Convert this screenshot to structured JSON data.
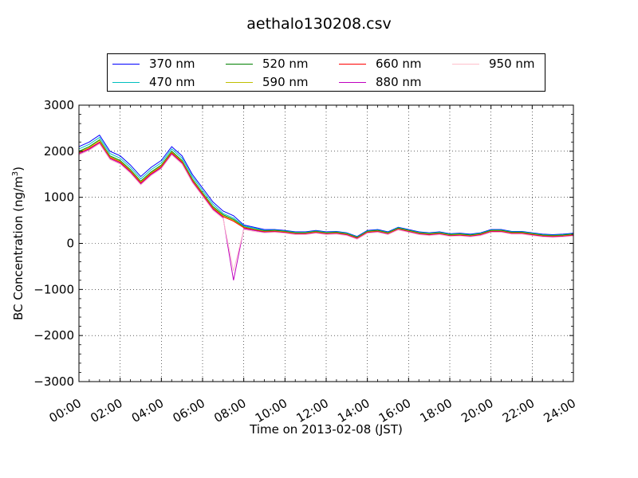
{
  "chart_data": {
    "type": "line",
    "title": "aethalo130208.csv",
    "xlabel": "Time on 2013-02-08 (JST)",
    "ylabel_main": "BC Concentration (ng/m",
    "ylabel_sup": "3",
    "ylabel_end": ")",
    "xlim_hours": [
      0,
      24
    ],
    "ylim": [
      -3000,
      3000
    ],
    "x_ticks": [
      {
        "hour": 0,
        "label": "00:00"
      },
      {
        "hour": 2,
        "label": "02:00"
      },
      {
        "hour": 4,
        "label": "04:00"
      },
      {
        "hour": 6,
        "label": "06:00"
      },
      {
        "hour": 8,
        "label": "08:00"
      },
      {
        "hour": 10,
        "label": "10:00"
      },
      {
        "hour": 12,
        "label": "12:00"
      },
      {
        "hour": 14,
        "label": "14:00"
      },
      {
        "hour": 16,
        "label": "16:00"
      },
      {
        "hour": 18,
        "label": "18:00"
      },
      {
        "hour": 20,
        "label": "20:00"
      },
      {
        "hour": 22,
        "label": "22:00"
      },
      {
        "hour": 24,
        "label": "24:00"
      }
    ],
    "y_ticks": [
      {
        "value": 3000,
        "label": "3000"
      },
      {
        "value": 2000,
        "label": "2000"
      },
      {
        "value": 1000,
        "label": "1000"
      },
      {
        "value": 0,
        "label": "0"
      },
      {
        "value": -1000,
        "label": "−1000"
      },
      {
        "value": -2000,
        "label": "−2000"
      },
      {
        "value": -3000,
        "label": "−3000"
      }
    ],
    "grid": true,
    "legend_position": "top-center",
    "x": [
      0.0,
      0.5,
      1.0,
      1.5,
      2.0,
      2.5,
      3.0,
      3.5,
      4.0,
      4.5,
      5.0,
      5.5,
      6.0,
      6.5,
      7.0,
      7.5,
      8.0,
      8.5,
      9.0,
      9.5,
      10.0,
      10.5,
      11.0,
      11.5,
      12.0,
      12.5,
      13.0,
      13.5,
      14.0,
      14.5,
      15.0,
      15.5,
      16.0,
      16.5,
      17.0,
      17.5,
      18.0,
      18.5,
      19.0,
      19.5,
      20.0,
      20.5,
      21.0,
      21.5,
      22.0,
      22.5,
      23.0,
      23.5,
      24.0
    ],
    "series": [
      {
        "name": "370 nm",
        "color": "#0000ff",
        "values": [
          2100,
          2200,
          2350,
          2000,
          1900,
          1700,
          1450,
          1650,
          1800,
          2100,
          1900,
          1500,
          1200,
          900,
          700,
          600,
          400,
          350,
          300,
          300,
          280,
          250,
          250,
          280,
          250,
          260,
          230,
          150,
          280,
          300,
          250,
          350,
          300,
          250,
          230,
          250,
          210,
          220,
          200,
          230,
          300,
          300,
          260,
          260,
          230,
          200,
          190,
          200,
          220
        ]
      },
      {
        "name": "470 nm",
        "color": "#00bfbf",
        "values": [
          2050,
          2150,
          2300,
          1950,
          1850,
          1650,
          1400,
          1600,
          1750,
          2050,
          1850,
          1450,
          1150,
          850,
          650,
          550,
          380,
          330,
          280,
          290,
          270,
          240,
          240,
          270,
          240,
          250,
          220,
          140,
          270,
          290,
          240,
          340,
          290,
          240,
          220,
          240,
          200,
          210,
          190,
          220,
          290,
          290,
          250,
          250,
          220,
          190,
          180,
          190,
          210
        ]
      },
      {
        "name": "520 nm",
        "color": "#008000",
        "values": [
          2000,
          2100,
          2250,
          1900,
          1800,
          1600,
          1350,
          1550,
          1700,
          2000,
          1800,
          1400,
          1100,
          800,
          620,
          520,
          360,
          310,
          270,
          280,
          260,
          230,
          230,
          260,
          230,
          240,
          210,
          130,
          260,
          280,
          230,
          330,
          280,
          230,
          210,
          230,
          190,
          200,
          180,
          210,
          280,
          280,
          240,
          240,
          210,
          180,
          170,
          180,
          200
        ]
      },
      {
        "name": "590 nm",
        "color": "#bfbf00",
        "values": [
          1980,
          2080,
          2230,
          1880,
          1780,
          1580,
          1330,
          1530,
          1680,
          1980,
          1780,
          1380,
          1080,
          780,
          600,
          500,
          350,
          300,
          260,
          270,
          250,
          220,
          220,
          250,
          220,
          230,
          200,
          120,
          250,
          270,
          220,
          320,
          270,
          220,
          200,
          220,
          180,
          190,
          170,
          200,
          270,
          270,
          230,
          230,
          200,
          170,
          160,
          170,
          190
        ]
      },
      {
        "name": "660 nm",
        "color": "#ff0000",
        "values": [
          1960,
          2060,
          2200,
          1860,
          1760,
          1560,
          1310,
          1510,
          1660,
          1960,
          1760,
          1360,
          1060,
          760,
          580,
          480,
          340,
          290,
          250,
          260,
          240,
          210,
          210,
          240,
          210,
          220,
          190,
          110,
          240,
          260,
          210,
          310,
          260,
          210,
          190,
          210,
          170,
          180,
          160,
          190,
          260,
          260,
          220,
          220,
          190,
          160,
          150,
          160,
          180
        ]
      },
      {
        "name": "880 nm",
        "color": "#bf00bf",
        "values": [
          1940,
          2040,
          2180,
          1840,
          1740,
          1540,
          1290,
          1490,
          1640,
          1940,
          1740,
          1340,
          1040,
          740,
          560,
          -800,
          320,
          280,
          240,
          250,
          230,
          200,
          200,
          230,
          200,
          210,
          180,
          100,
          230,
          250,
          200,
          300,
          250,
          200,
          180,
          200,
          160,
          170,
          150,
          180,
          250,
          250,
          210,
          210,
          180,
          150,
          140,
          150,
          170
        ]
      },
      {
        "name": "950 nm",
        "color": "#ffc0cb",
        "values": [
          1920,
          2020,
          2160,
          1820,
          1720,
          1520,
          1270,
          1470,
          1620,
          1920,
          1720,
          1320,
          1020,
          720,
          540,
          -600,
          300,
          260,
          230,
          240,
          220,
          190,
          190,
          220,
          190,
          200,
          170,
          90,
          220,
          240,
          190,
          290,
          240,
          190,
          170,
          190,
          150,
          160,
          140,
          170,
          240,
          240,
          200,
          200,
          170,
          140,
          130,
          140,
          160
        ]
      }
    ]
  }
}
